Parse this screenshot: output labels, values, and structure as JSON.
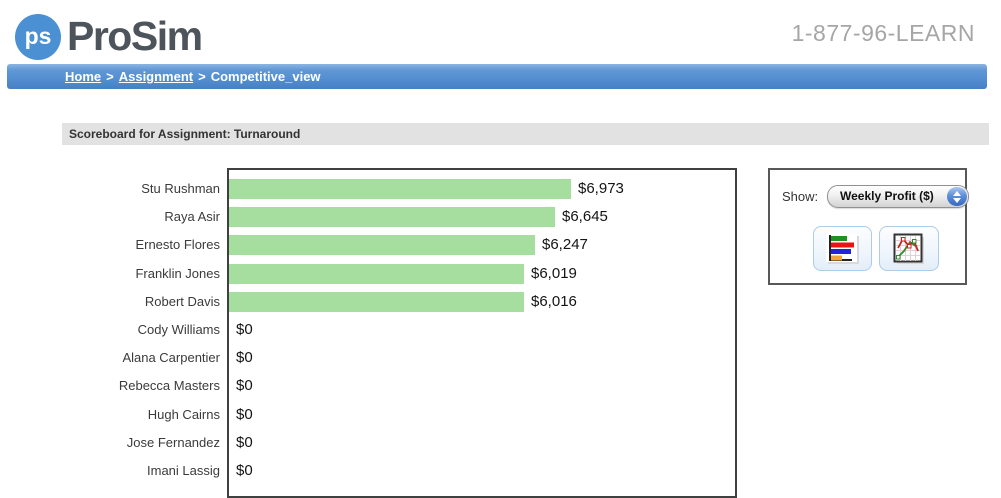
{
  "header": {
    "logo_badge": "ps",
    "logo_text": "ProSim",
    "phone": "1-877-96-LEARN"
  },
  "breadcrumb": {
    "separator": ">",
    "items": [
      {
        "label": "Home"
      },
      {
        "label": "Assignment"
      },
      {
        "label": "Competitive_view"
      }
    ]
  },
  "section": {
    "title": "Scoreboard for Assignment: Turnaround"
  },
  "panel": {
    "show_label": "Show:",
    "dropdown_value": "Weekly Profit ($)",
    "buttons": [
      {
        "name": "bar-chart-view"
      },
      {
        "name": "line-chart-view"
      }
    ]
  },
  "colors": {
    "bar_green": "#a5de9f",
    "brand_blue": "#4a90d2",
    "breadcrumb_blue": "#5590d2",
    "chart_border": "#3f4040"
  },
  "chart_data": {
    "type": "bar",
    "orientation": "horizontal",
    "metric": "Weekly Profit ($)",
    "categories": [
      "Stu Rushman",
      "Raya Asir",
      "Ernesto Flores",
      "Franklin Jones",
      "Robert Davis",
      "Cody Williams",
      "Alana Carpentier",
      "Rebecca Masters",
      "Hugh Cairns",
      "Jose Fernandez",
      "Imani Lassig"
    ],
    "values": [
      6973,
      6645,
      6247,
      6019,
      6016,
      0,
      0,
      0,
      0,
      0,
      0
    ],
    "value_labels": [
      "$6,973",
      "$6,645",
      "$6,247",
      "$6,019",
      "$6,016",
      "$0",
      "$0",
      "$0",
      "$0",
      "$0",
      "$0"
    ],
    "bar_color": "#a5de9f",
    "xlim": [
      0,
      6973
    ],
    "grid": false,
    "legend": false
  }
}
